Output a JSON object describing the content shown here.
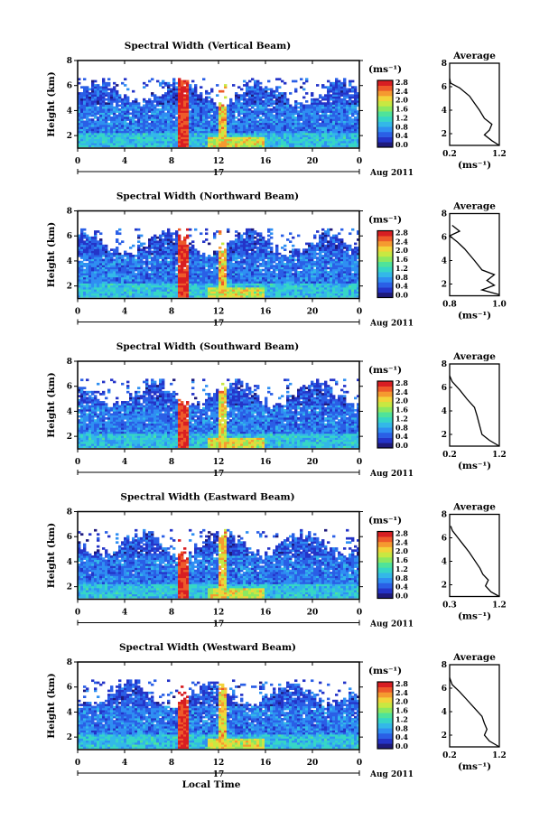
{
  "chart_data": [
    {
      "type": "heatmap",
      "title": "Spectral Width (Vertical Beam)",
      "ylabel": "Height (km)",
      "xlim": [
        0,
        24
      ],
      "ylim": [
        1,
        8
      ],
      "x_ticks": [
        "0",
        "4",
        "8",
        "12",
        "16",
        "20",
        "0"
      ],
      "y_ticks": [
        "2",
        "4",
        "6",
        "8"
      ],
      "date_label": "17",
      "date_suffix": "Aug 2011",
      "colorbar": {
        "unit": "(ms⁻¹)",
        "ticks": [
          "0.0",
          "0.4",
          "0.8",
          "1.2",
          "1.6",
          "2.0",
          "2.4",
          "2.8"
        ],
        "range": [
          0,
          3.0
        ]
      },
      "average": {
        "title": "Average",
        "xlabel": "(ms⁻¹)",
        "x_ticks": [
          "0.2",
          "1.2"
        ],
        "xlim": [
          0.2,
          1.2
        ],
        "y_ticks": [
          "2",
          "4",
          "6",
          "8"
        ],
        "ylim": [
          1,
          8
        ],
        "profile": [
          [
            1.2,
            1.0
          ],
          [
            1.05,
            1.4
          ],
          [
            0.9,
            1.9
          ],
          [
            1.0,
            2.3
          ],
          [
            1.05,
            2.8
          ],
          [
            0.9,
            3.3
          ],
          [
            0.8,
            4.0
          ],
          [
            0.7,
            4.6
          ],
          [
            0.6,
            5.2
          ],
          [
            0.4,
            5.9
          ],
          [
            0.22,
            6.3
          ],
          [
            0.2,
            6.7
          ]
        ]
      }
    },
    {
      "type": "heatmap",
      "title": "Spectral Width (Northward Beam)",
      "ylabel": "Height (km)",
      "xlim": [
        0,
        24
      ],
      "ylim": [
        1,
        8
      ],
      "x_ticks": [
        "0",
        "4",
        "8",
        "12",
        "16",
        "20",
        "0"
      ],
      "y_ticks": [
        "2",
        "4",
        "6",
        "8"
      ],
      "date_label": "17",
      "date_suffix": "Aug 2011",
      "colorbar": {
        "unit": "(ms⁻¹)",
        "ticks": [
          "0.0",
          "0.4",
          "0.8",
          "1.2",
          "1.6",
          "2.0",
          "2.4",
          "2.8"
        ],
        "range": [
          0,
          3.0
        ]
      },
      "average": {
        "title": "Average",
        "xlabel": "(ms⁻¹)",
        "x_ticks": [
          "0.8",
          "1.0"
        ],
        "xlim": [
          0.8,
          1.0
        ],
        "y_ticks": [
          "2",
          "4",
          "6",
          "8"
        ],
        "ylim": [
          1,
          8
        ],
        "profile": [
          [
            1.0,
            1.1
          ],
          [
            0.93,
            1.5
          ],
          [
            0.98,
            1.9
          ],
          [
            0.95,
            2.3
          ],
          [
            0.98,
            2.8
          ],
          [
            0.93,
            3.2
          ],
          [
            0.9,
            4.0
          ],
          [
            0.86,
            5.0
          ],
          [
            0.83,
            5.6
          ],
          [
            0.8,
            6.1
          ],
          [
            0.84,
            6.5
          ],
          [
            0.81,
            7.0
          ]
        ]
      }
    },
    {
      "type": "heatmap",
      "title": "Spectral Width (Southward Beam)",
      "ylabel": "Height (km)",
      "xlim": [
        0,
        24
      ],
      "ylim": [
        1,
        8
      ],
      "x_ticks": [
        "0",
        "4",
        "8",
        "12",
        "16",
        "20",
        "0"
      ],
      "y_ticks": [
        "2",
        "4",
        "6",
        "8"
      ],
      "date_label": "17",
      "date_suffix": "Aug 2011",
      "colorbar": {
        "unit": "(ms⁻¹)",
        "ticks": [
          "0.0",
          "0.4",
          "0.8",
          "1.2",
          "1.6",
          "2.0",
          "2.4",
          "2.8"
        ],
        "range": [
          0,
          3.0
        ]
      },
      "average": {
        "title": "Average",
        "xlabel": "(ms⁻¹)",
        "x_ticks": [
          "0.2",
          "1.2"
        ],
        "xlim": [
          0.2,
          1.2
        ],
        "y_ticks": [
          "2",
          "4",
          "6",
          "8"
        ],
        "ylim": [
          1,
          8
        ],
        "profile": [
          [
            1.2,
            1.0
          ],
          [
            1.0,
            1.5
          ],
          [
            0.85,
            2.0
          ],
          [
            0.8,
            2.8
          ],
          [
            0.75,
            3.6
          ],
          [
            0.7,
            4.3
          ],
          [
            0.55,
            5.0
          ],
          [
            0.4,
            5.8
          ],
          [
            0.25,
            6.5
          ],
          [
            0.2,
            7.0
          ]
        ]
      }
    },
    {
      "type": "heatmap",
      "title": "Spectral Width (Eastward Beam)",
      "ylabel": "Height (km)",
      "xlim": [
        0,
        24
      ],
      "ylim": [
        1,
        8
      ],
      "x_ticks": [
        "0",
        "4",
        "8",
        "12",
        "16",
        "20",
        "0"
      ],
      "y_ticks": [
        "2",
        "4",
        "6",
        "8"
      ],
      "date_label": "17",
      "date_suffix": "Aug 2011",
      "colorbar": {
        "unit": "(ms⁻¹)",
        "ticks": [
          "0.0",
          "0.4",
          "0.8",
          "1.2",
          "1.6",
          "2.0",
          "2.4",
          "2.8"
        ],
        "range": [
          0,
          3.0
        ]
      },
      "average": {
        "title": "Average",
        "xlabel": "(ms⁻¹)",
        "x_ticks": [
          "0.3",
          "1.2"
        ],
        "xlim": [
          0.3,
          1.2
        ],
        "y_ticks": [
          "2",
          "4",
          "6",
          "8"
        ],
        "ylim": [
          1,
          8
        ],
        "profile": [
          [
            1.2,
            1.0
          ],
          [
            1.05,
            1.4
          ],
          [
            0.95,
            1.9
          ],
          [
            1.0,
            2.4
          ],
          [
            0.9,
            2.9
          ],
          [
            0.85,
            3.4
          ],
          [
            0.75,
            4.1
          ],
          [
            0.65,
            4.8
          ],
          [
            0.55,
            5.4
          ],
          [
            0.45,
            6.0
          ],
          [
            0.35,
            6.6
          ],
          [
            0.32,
            7.0
          ]
        ]
      }
    },
    {
      "type": "heatmap",
      "title": "Spectral Width (Westward Beam)",
      "ylabel": "Height (km)",
      "xlim": [
        0,
        24
      ],
      "ylim": [
        1,
        8
      ],
      "x_ticks": [
        "0",
        "4",
        "8",
        "12",
        "16",
        "20",
        "0"
      ],
      "y_ticks": [
        "2",
        "4",
        "6",
        "8"
      ],
      "date_label": "17",
      "date_suffix": "Aug 2011",
      "xlabel": "Local Time",
      "colorbar": {
        "unit": "(ms⁻¹)",
        "ticks": [
          "0.0",
          "0.4",
          "0.8",
          "1.2",
          "1.6",
          "2.0",
          "2.4",
          "2.8"
        ],
        "range": [
          0,
          3.0
        ]
      },
      "average": {
        "title": "Average",
        "xlabel": "(ms⁻¹)",
        "x_ticks": [
          "0.2",
          "1.2"
        ],
        "xlim": [
          0.2,
          1.2
        ],
        "y_ticks": [
          "2",
          "4",
          "6",
          "8"
        ],
        "ylim": [
          1,
          8
        ],
        "profile": [
          [
            1.2,
            1.0
          ],
          [
            1.0,
            1.5
          ],
          [
            0.9,
            2.0
          ],
          [
            0.95,
            2.5
          ],
          [
            0.9,
            3.0
          ],
          [
            0.85,
            3.6
          ],
          [
            0.7,
            4.3
          ],
          [
            0.55,
            5.0
          ],
          [
            0.4,
            5.7
          ],
          [
            0.25,
            6.3
          ],
          [
            0.2,
            6.9
          ]
        ]
      }
    }
  ]
}
